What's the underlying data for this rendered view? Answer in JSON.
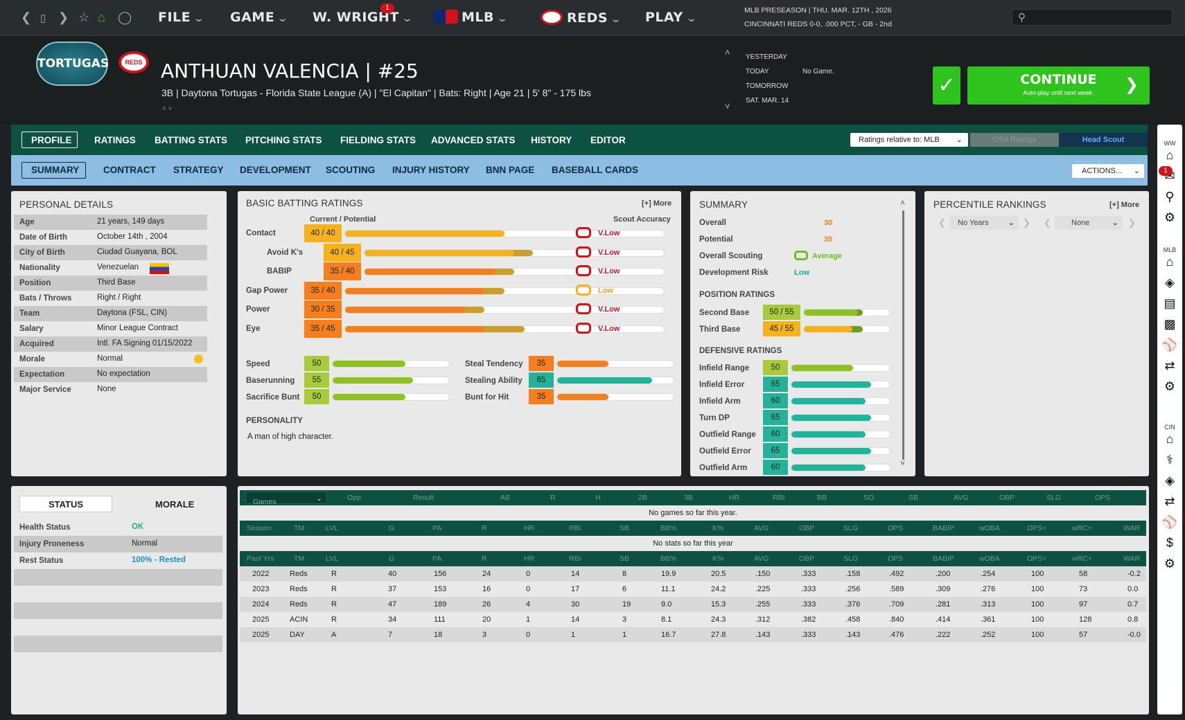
{
  "topbar": {
    "menus": [
      "FILE",
      "GAME",
      "W. WRIGHT",
      "MLB",
      "REDS",
      "PLAY"
    ],
    "notif_badge": "1",
    "context_line1": "MLB PRESEASON  |  THU. MAR. 12TH , 2026",
    "context_line2": "CINCINNATI REDS  0-0, .000 PCT, - GB - 2nd",
    "search_placeholder": ""
  },
  "header": {
    "team_logo": "TORTUGAS",
    "parent_logo": "REDS",
    "player_name": "ANTHUAN VALENCIA  |  #25",
    "player_info": "3B | Daytona Tortugas - Florida State League (A)  |  \"El Capitan\" | Bats: Right  |  Age 21  |  5' 8\"  - 175 lbs",
    "days": [
      {
        "label": "YESTERDAY",
        "value": ""
      },
      {
        "label": "TODAY",
        "value": "No Game."
      },
      {
        "label": "TOMORROW",
        "value": ""
      },
      {
        "label": "SAT. MAR. 14",
        "value": ""
      }
    ],
    "continue_label": "CONTINUE",
    "continue_sub": "Auto-play until next week."
  },
  "tabs_main": [
    "PROFILE",
    "RATINGS",
    "BATTING STATS",
    "PITCHING STATS",
    "FIELDING STATS",
    "ADVANCED STATS",
    "HISTORY",
    "EDITOR"
  ],
  "ratings_relative": "Ratings relative to: MLB",
  "osa_label": "OSA Ratings",
  "scout_label": "Head Scout",
  "tabs_sub": [
    "SUMMARY",
    "CONTRACT",
    "STRATEGY",
    "DEVELOPMENT",
    "SCOUTING",
    "INJURY HISTORY",
    "BNN PAGE",
    "BASEBALL CARDS"
  ],
  "actions_label": "ACTIONS...",
  "personal": {
    "title": "PERSONAL DETAILS",
    "rows": [
      {
        "label": "Age",
        "value": "21 years, 149 days"
      },
      {
        "label": "Date of Birth",
        "value": "October 14th , 2004"
      },
      {
        "label": "City of Birth",
        "value": "Ciudad Guayana, BOL"
      },
      {
        "label": "Nationality",
        "value": "Venezuelan"
      },
      {
        "label": "Position",
        "value": "Third Base"
      },
      {
        "label": "Bats / Throws",
        "value": "Right / Right"
      },
      {
        "label": "Team",
        "value": "Daytona (FSL, CIN)"
      },
      {
        "label": "Salary",
        "value": "Minor League Contract"
      },
      {
        "label": "Acquired",
        "value": "Intl. FA Signing 01/15/2022"
      },
      {
        "label": "Morale",
        "value": "Normal"
      },
      {
        "label": "Expectation",
        "value": "No expectation"
      },
      {
        "label": "Major Service",
        "value": "None"
      }
    ]
  },
  "batting": {
    "title": "BASIC BATTING RATINGS",
    "more": "[+] More",
    "cur_pot": "Current / Potential",
    "scout_acc": "Scout Accuracy",
    "rows": [
      {
        "label": "Contact",
        "value": "40 / 40",
        "cur": 40,
        "pot": 40,
        "accuracy": "V.Low",
        "color": "#f5b21c",
        "indent": false
      },
      {
        "label": "Avoid K's",
        "value": "40 / 45",
        "cur": 40,
        "pot": 45,
        "accuracy": "V.Low",
        "color": "#f5b21c",
        "indent": true
      },
      {
        "label": "BABIP",
        "value": "35 / 40",
        "cur": 35,
        "pot": 40,
        "accuracy": "V.Low",
        "color": "#f57f1c",
        "indent": true
      },
      {
        "label": "Gap Power",
        "value": "35 / 40",
        "cur": 35,
        "pot": 40,
        "accuracy": "Low",
        "color": "#f57f1c",
        "indent": false
      },
      {
        "label": "Power",
        "value": "30 / 35",
        "cur": 30,
        "pot": 35,
        "accuracy": "V.Low",
        "color": "#f57f1c",
        "indent": false
      },
      {
        "label": "Eye",
        "value": "35 / 45",
        "cur": 35,
        "pot": 45,
        "accuracy": "V.Low",
        "color": "#f57f1c",
        "indent": false
      }
    ],
    "other_left": [
      {
        "label": "Speed",
        "value": "50",
        "color": "#a7cb3a",
        "bar": "#8dc21f"
      },
      {
        "label": "Baserunning",
        "value": "55",
        "color": "#a7cb3a",
        "bar": "#8dc21f"
      },
      {
        "label": "Sacrifice Bunt",
        "value": "50",
        "color": "#a7cb3a",
        "bar": "#8dc21f"
      }
    ],
    "other_right": [
      {
        "label": "Steal Tendency",
        "value": "35",
        "color": "#f57f1c",
        "bar": "#f57f1c"
      },
      {
        "label": "Stealing Ability",
        "value": "65",
        "color": "#24b39a",
        "bar": "#1fb59b"
      },
      {
        "label": "Bunt for Hit",
        "value": "35",
        "color": "#f57f1c",
        "bar": "#f57f1c"
      }
    ],
    "personality_title": "PERSONALITY",
    "personality": "A man of high character."
  },
  "summary": {
    "title": "SUMMARY",
    "rows": [
      {
        "label": "Overall",
        "value": "30",
        "color": "#f57f1c"
      },
      {
        "label": "Potential",
        "value": "35",
        "color": "#f57f1c"
      },
      {
        "label": "Overall Scouting",
        "value": "Average",
        "color": "#6bbf1e"
      },
      {
        "label": "Development Risk",
        "value": "Low",
        "color": "#1fa98f"
      }
    ],
    "pos_title": "POSITION RATINGS",
    "positions": [
      {
        "label": "Second Base",
        "value": "50 / 55",
        "cur": 50,
        "pot": 55,
        "color": "#a7cb3a",
        "bar": "#8dc21f"
      },
      {
        "label": "Third Base",
        "value": "45 / 55",
        "cur": 45,
        "pot": 55,
        "color": "#f5b21c",
        "bar": "#f5b21c"
      }
    ],
    "def_title": "DEFENSIVE RATINGS",
    "defense": [
      {
        "label": "Infield Range",
        "value": "50",
        "color": "#a7cb3a",
        "bar": "#8dc21f"
      },
      {
        "label": "Infield Error",
        "value": "65",
        "color": "#24b39a",
        "bar": "#1fb59b"
      },
      {
        "label": "Infield Arm",
        "value": "60",
        "color": "#24b39a",
        "bar": "#1fb59b"
      },
      {
        "label": "Turn DP",
        "value": "65",
        "color": "#24b39a",
        "bar": "#1fb59b"
      },
      {
        "label": "Outfield Range",
        "value": "60",
        "color": "#24b39a",
        "bar": "#1fb59b"
      },
      {
        "label": "Outfield Error",
        "value": "65",
        "color": "#24b39a",
        "bar": "#1fb59b"
      },
      {
        "label": "Outfield Arm",
        "value": "60",
        "color": "#24b39a",
        "bar": "#1fb59b"
      }
    ]
  },
  "percentile": {
    "title": "PERCENTILE RANKINGS",
    "more": "[+] More",
    "sel1": "No Years",
    "sel2": "None"
  },
  "status": {
    "tab1": "STATUS",
    "tab2": "MORALE",
    "rows": [
      {
        "label": "Health Status",
        "value": "OK",
        "color": "#20b080"
      },
      {
        "label": "Injury Proneness",
        "value": "Normal",
        "color": "#222"
      },
      {
        "label": "Rest Status",
        "value": "100% - Rested",
        "color": "#1a8fd8"
      }
    ]
  },
  "games": {
    "select": "Games",
    "cols": [
      "Opp",
      "Result",
      "AB",
      "R",
      "H",
      "2B",
      "3B",
      "HR",
      "RBI",
      "BB",
      "SO",
      "SB",
      "AVG",
      "OBP",
      "SLG",
      "OPS"
    ],
    "empty": "No games so far this year."
  },
  "season": {
    "cols": [
      "Season",
      "TM",
      "LVL",
      "G",
      "PA",
      "R",
      "HR",
      "RBI",
      "SB",
      "BB%",
      "K%",
      "AVG",
      "OBP",
      "SLG",
      "OPS",
      "BABIP",
      "wOBA",
      "OPS+",
      "wRC+",
      "WAR"
    ],
    "empty": "No stats so far this year"
  },
  "past": {
    "cols": [
      "Past Yrs",
      "TM",
      "LVL",
      "G",
      "PA",
      "R",
      "HR",
      "RBI",
      "SB",
      "BB%",
      "K%",
      "AVG",
      "OBP",
      "SLG",
      "OPS",
      "BABIP",
      "wOBA",
      "OPS+",
      "wRC+",
      "WAR"
    ],
    "rows": [
      [
        "2022",
        "Reds",
        "R",
        "40",
        "156",
        "24",
        "0",
        "14",
        "8",
        "19.9",
        "20.5",
        ".150",
        ".333",
        ".158",
        ".492",
        ".200",
        ".254",
        "100",
        "58",
        "-0.2"
      ],
      [
        "2023",
        "Reds",
        "R",
        "37",
        "153",
        "16",
        "0",
        "17",
        "6",
        "11.1",
        "24.2",
        ".225",
        ".333",
        ".256",
        ".589",
        ".309",
        ".276",
        "100",
        "73",
        "0.0"
      ],
      [
        "2024",
        "Reds",
        "R",
        "47",
        "189",
        "26",
        "4",
        "30",
        "19",
        "9.0",
        "15.3",
        ".255",
        ".333",
        ".376",
        ".709",
        ".281",
        ".313",
        "100",
        "97",
        "0.7"
      ],
      [
        "2025",
        "ACIN",
        "R",
        "34",
        "111",
        "20",
        "1",
        "14",
        "3",
        "8.1",
        "24.3",
        ".312",
        ".382",
        ".458",
        ".840",
        ".414",
        ".361",
        "100",
        "128",
        "0.8"
      ],
      [
        "2025",
        "DAY",
        "A",
        "7",
        "18",
        "3",
        "0",
        "1",
        "1",
        "16.7",
        "27.8",
        ".143",
        ".333",
        ".143",
        ".476",
        ".222",
        ".252",
        "100",
        "57",
        "-0.0"
      ]
    ]
  },
  "sidebar": {
    "labels": [
      "WW",
      "MLB",
      "CIN"
    ],
    "badge": "1"
  }
}
